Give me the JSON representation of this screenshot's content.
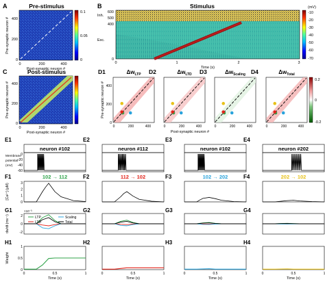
{
  "panels": {
    "A": {
      "letter": "A",
      "title": "Pre-stimulus",
      "xlabel": "Post-synaptic neuron #",
      "ylabel": "Pre-synaptic neuron #",
      "xticks": [
        "0",
        "200",
        "400"
      ],
      "yticks": [
        "0",
        "200",
        "400"
      ],
      "cbar_ticks": [
        "0.1",
        "0.05",
        "0"
      ]
    },
    "B": {
      "letter": "B",
      "title": "Stimulus",
      "xlabel": "Time (s)",
      "xticks": [
        "0",
        "1",
        "2",
        "3"
      ],
      "yticks": [
        "600",
        "500",
        "400",
        "0"
      ],
      "inh_label": "Inh.",
      "exc_label": "Exc.",
      "cbar_unit": "(mV)",
      "cbar_ticks": [
        "-10",
        "-20",
        "-30",
        "-40",
        "-50",
        "-60",
        "-70"
      ]
    },
    "C": {
      "letter": "C",
      "title": "Post-stimulus",
      "xlabel": "Post-synaptic neuron #",
      "ylabel": "Pre-synaptic neuron #",
      "xticks": [
        "0",
        "200",
        "400"
      ],
      "yticks": [
        "0",
        "200",
        "400"
      ]
    },
    "D": {
      "letters": [
        "D1",
        "D2",
        "D3",
        "D4"
      ],
      "titles": [
        "Δw_LTP",
        "Δw_LTD",
        "Δw_Scaling",
        "Δw_Total"
      ],
      "title_main": "Δw",
      "title_subs": [
        "LTP",
        "LTD",
        "Scaling",
        "Total"
      ],
      "xlabel": "Post-synaptic neuron #",
      "ylabel": "Pre-synaptic neuron #",
      "xticks": [
        "0",
        "200",
        "400"
      ],
      "yticks": [
        "0",
        "200",
        "400"
      ],
      "cbar_ticks": [
        "0.2",
        "0",
        "-0.2"
      ]
    },
    "E": {
      "letters": [
        "E1",
        "E2",
        "E3",
        "E4"
      ],
      "titles": [
        "neuron #102",
        "neuron #112",
        "neuron #102",
        "neuron #202"
      ],
      "ylabel": "Membrane potential (mV)",
      "ylabel_lines": [
        "Membrane",
        "potential",
        "(mV)"
      ],
      "yticks": [
        "0",
        "-20",
        "-40",
        "-60"
      ]
    },
    "F": {
      "letters": [
        "F1",
        "F2",
        "F3",
        "F4"
      ],
      "titles": [
        "102 → 112",
        "112 → 102",
        "102 → 202",
        "202 → 102"
      ],
      "title_colors": [
        "#2fa34a",
        "#e2231a",
        "#29a3dc",
        "#e8c21a"
      ],
      "ylabel": "[Ca²⁺] (μM)",
      "yticks": [
        "3",
        "2",
        "1",
        "0"
      ]
    },
    "G": {
      "letters": [
        "G1",
        "G2",
        "G3",
        "G4"
      ],
      "ylabel": "dw/dt (ms⁻¹)",
      "exp_label": "×10⁻³",
      "yticks": [
        "2",
        "0",
        "-2"
      ],
      "legend": [
        {
          "label": "LTP",
          "color": "#2fa34a"
        },
        {
          "label": "LTD",
          "color": "#e2231a"
        },
        {
          "label": "Scaling",
          "color": "#29a3dc"
        },
        {
          "label": "Total",
          "color": "#000000"
        }
      ]
    },
    "H": {
      "letters": [
        "H1",
        "H2",
        "H3",
        "H4"
      ],
      "ylabel": "Weight",
      "yticks": [
        "1",
        "0.5",
        "0"
      ],
      "xticks": [
        "0",
        "0.5",
        "1"
      ],
      "xlabel": "Time (s)"
    }
  },
  "chart_data": [
    {
      "panel": "A",
      "type": "heatmap",
      "title": "Pre-stimulus",
      "xlabel": "Post-synaptic neuron #",
      "ylabel": "Pre-synaptic neuron #",
      "xlim": [
        0,
        480
      ],
      "ylim": [
        0,
        480
      ],
      "colorbar": {
        "ticks": [
          0.1,
          0.05,
          0
        ],
        "colormap": "jet"
      },
      "description_values": {
        "background": 0.03,
        "diagonal": "dashed white reference line"
      }
    },
    {
      "panel": "B",
      "type": "heatmap",
      "title": "Stimulus",
      "xlabel": "Time (s)",
      "xlim": [
        0,
        3
      ],
      "ylim": [
        0,
        600
      ],
      "colorbar": {
        "unit": "mV",
        "range": [
          -70,
          -10
        ]
      },
      "stimulus_trace": {
        "x": [
          0.6,
          2.0
        ],
        "y": [
          0,
          480
        ]
      }
    },
    {
      "panel": "C",
      "type": "heatmap",
      "title": "Post-stimulus",
      "xlabel": "Post-synaptic neuron #",
      "ylabel": "Pre-synaptic neuron #",
      "xlim": [
        0,
        480
      ],
      "ylim": [
        0,
        480
      ],
      "colorbar": {
        "ticks": [
          0.1,
          0.05,
          0
        ]
      }
    },
    {
      "panel": "D",
      "type": "heatmap",
      "titles": [
        "Δw_LTP",
        "Δw_LTD",
        "Δw_Scaling",
        "Δw_Total"
      ],
      "xlim": [
        0,
        480
      ],
      "ylim": [
        0,
        480
      ],
      "colorbar": {
        "ticks": [
          0.2,
          0,
          -0.2
        ]
      },
      "markers": [
        {
          "x": 112,
          "y": 102,
          "color": "#2fa34a"
        },
        {
          "x": 102,
          "y": 112,
          "color": "#e2231a"
        },
        {
          "x": 202,
          "y": 102,
          "color": "#29a3dc"
        },
        {
          "x": 102,
          "y": 202,
          "color": "#e8c21a"
        }
      ]
    },
    {
      "panel": "E",
      "type": "line",
      "xlim": [
        0,
        1
      ],
      "ylim": [
        -70,
        5
      ],
      "series": [
        {
          "name": "neuron #102",
          "spike_window": [
            0.22,
            0.32
          ],
          "rest": -60
        },
        {
          "name": "neuron #112",
          "spike_window": [
            0.26,
            0.38
          ],
          "rest": -60
        },
        {
          "name": "neuron #102",
          "spike_window": [
            0.22,
            0.32
          ],
          "rest": -60
        },
        {
          "name": "neuron #202",
          "spike_window": [
            0.47,
            0.62
          ],
          "rest": -60
        }
      ]
    },
    {
      "panel": "F",
      "type": "line",
      "xlim": [
        0,
        1
      ],
      "ylim": [
        0,
        3.2
      ],
      "series": [
        {
          "name": "102 → 112",
          "x": [
            0,
            0.2,
            0.25,
            0.3,
            0.35,
            0.4,
            0.5,
            0.6,
            0.8,
            1
          ],
          "y": [
            0,
            0,
            0.8,
            1.6,
            2.3,
            2.9,
            1.6,
            0.8,
            0.2,
            0.05
          ]
        },
        {
          "name": "112 → 102",
          "x": [
            0,
            0.2,
            0.25,
            0.3,
            0.35,
            0.4,
            0.5,
            0.6,
            0.8,
            1
          ],
          "y": [
            0,
            0,
            0.4,
            0.8,
            1.3,
            1.6,
            0.9,
            0.4,
            0.1,
            0
          ]
        },
        {
          "name": "102 → 202",
          "x": [
            0,
            0.2,
            0.25,
            0.3,
            0.4,
            0.5,
            0.6,
            0.8,
            1
          ],
          "y": [
            0,
            0,
            0.3,
            0.55,
            0.7,
            0.5,
            0.25,
            0.05,
            0
          ]
        },
        {
          "name": "202 → 102",
          "x": [
            0,
            0.2,
            0.3,
            0.4,
            0.5,
            0.6,
            0.8,
            1
          ],
          "y": [
            0,
            0,
            0.1,
            0.2,
            0.25,
            0.15,
            0.05,
            0
          ]
        }
      ]
    },
    {
      "panel": "G",
      "type": "line",
      "xlim": [
        0,
        1
      ],
      "ylim": [
        -2.5,
        2.5
      ],
      "series": [
        {
          "name": "LTP",
          "panel": 1,
          "x": [
            0,
            0.2,
            0.3,
            0.4,
            0.5,
            0.6,
            1
          ],
          "y": [
            0,
            0,
            1.5,
            2.2,
            0.8,
            0,
            0
          ]
        },
        {
          "name": "LTD",
          "panel": 1,
          "x": [
            0,
            0.2,
            0.3,
            0.4,
            0.5,
            0.6,
            1
          ],
          "y": [
            0,
            0,
            -0.3,
            -0.5,
            -0.2,
            0,
            0
          ]
        },
        {
          "name": "Scaling",
          "panel": 1,
          "x": [
            0,
            0.2,
            0.3,
            0.4,
            0.5,
            0.6,
            1
          ],
          "y": [
            0,
            0,
            -1.0,
            -1.2,
            -0.5,
            0,
            0
          ]
        },
        {
          "name": "Total",
          "panel": 1,
          "x": [
            0,
            0.2,
            0.3,
            0.4,
            0.5,
            0.6,
            1
          ],
          "y": [
            0,
            0,
            1.0,
            1.5,
            0.5,
            0,
            0
          ]
        }
      ]
    },
    {
      "panel": "H",
      "type": "line",
      "xlim": [
        0,
        1
      ],
      "ylim": [
        0,
        1
      ],
      "series": [
        {
          "name": "102 → 112",
          "color": "#2fa34a",
          "x": [
            0,
            0.2,
            0.3,
            0.4,
            0.5,
            1
          ],
          "y": [
            0.02,
            0.02,
            0.2,
            0.48,
            0.5,
            0.5
          ]
        },
        {
          "name": "112 → 102",
          "color": "#e2231a",
          "x": [
            0,
            0.2,
            0.3,
            0.4,
            1
          ],
          "y": [
            0.02,
            0.02,
            0.05,
            0.08,
            0.08
          ]
        },
        {
          "name": "102 → 202",
          "color": "#29a3dc",
          "x": [
            0,
            0.2,
            0.4,
            0.5,
            1
          ],
          "y": [
            0.02,
            0.02,
            0.04,
            0.02,
            0.02
          ]
        },
        {
          "name": "202 → 102",
          "color": "#e8c21a",
          "x": [
            0,
            0.2,
            0.4,
            0.5,
            1
          ],
          "y": [
            0.02,
            0.02,
            0.03,
            0.02,
            0.02
          ]
        }
      ]
    }
  ]
}
